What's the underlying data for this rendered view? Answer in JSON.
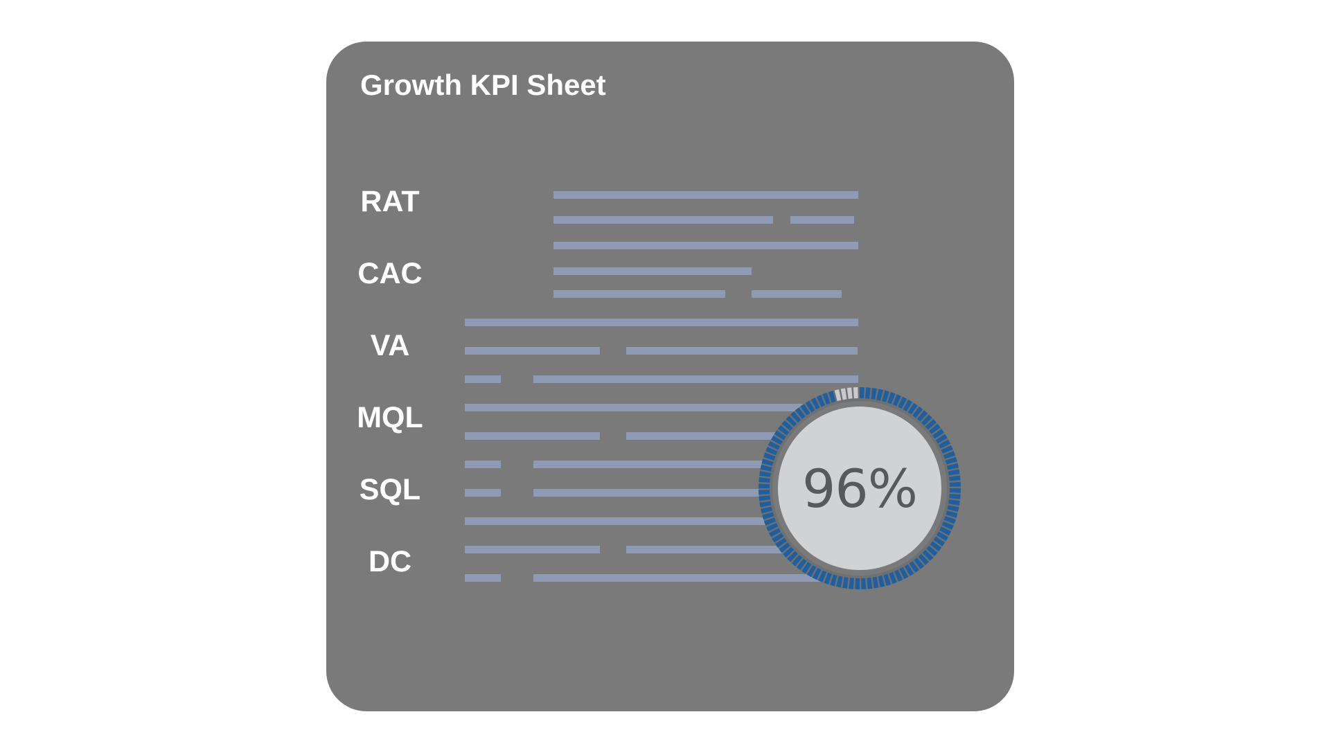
{
  "sheet": {
    "title": "Growth KPI Sheet",
    "labels": [
      "RAT",
      "CAC",
      "VA",
      "MQL",
      "SQL",
      "DC"
    ]
  },
  "gauge": {
    "percent": 96,
    "display": "96%",
    "colors": {
      "filled": "#1f5fa0",
      "empty": "#c9cacd",
      "face": "#d1d2d4",
      "text": "#58595b"
    }
  },
  "colors": {
    "card": "#7a7a7a",
    "line": "#8f9bb4",
    "text": "#ffffff"
  }
}
